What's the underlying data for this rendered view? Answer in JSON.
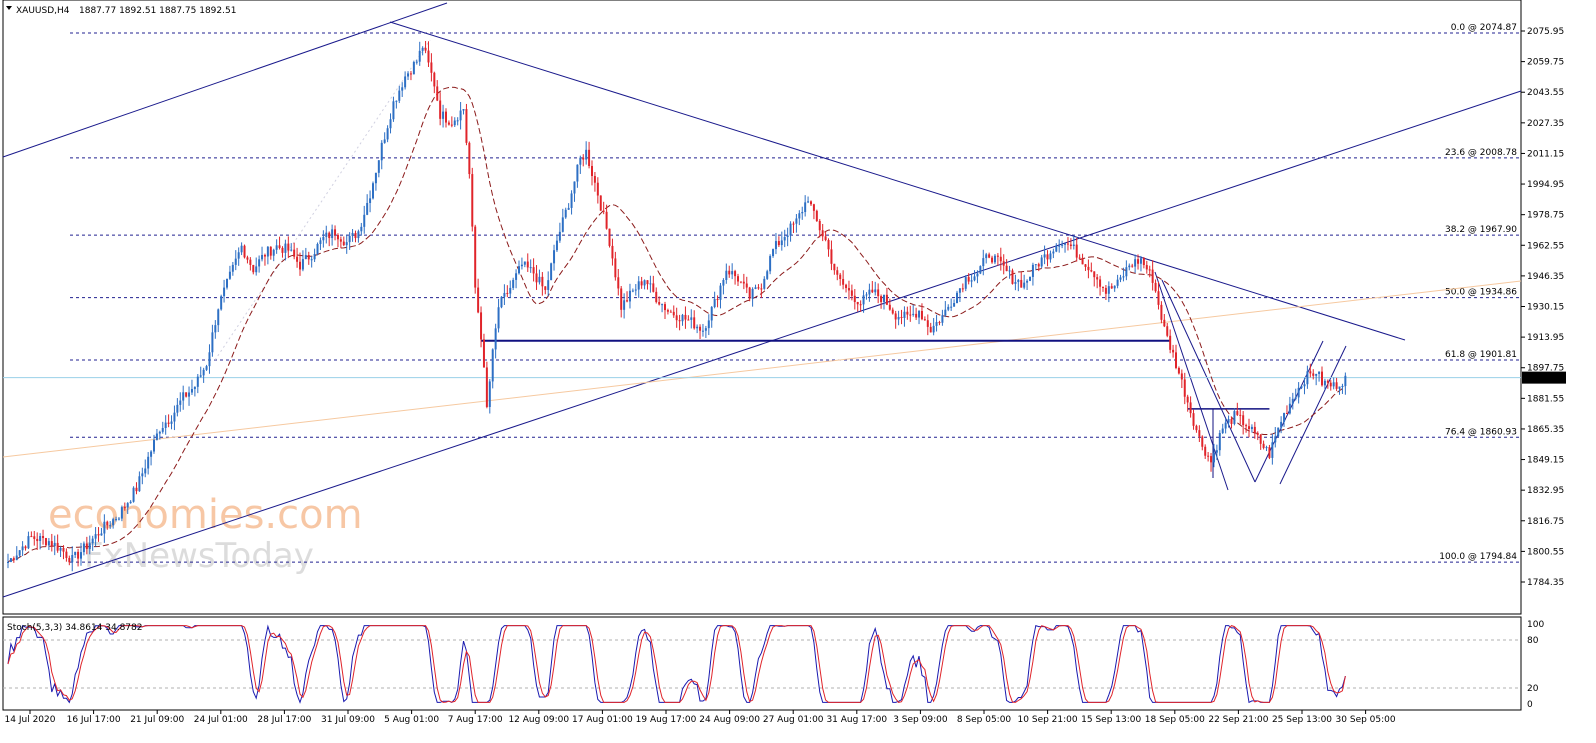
{
  "header": {
    "symbol": "XAUUSD,H4",
    "ohlc": "1887.77 1892.51 1887.75 1892.51"
  },
  "watermark": {
    "line1": "economies.com",
    "line2": "FxNewsToday"
  },
  "chart_data": {
    "type": "candlestick",
    "ylim": [
      1784.35,
      2083
    ],
    "price_ticks": [
      "2075.95",
      "2059.75",
      "2043.55",
      "2027.35",
      "2011.15",
      "1994.95",
      "1978.75",
      "1962.55",
      "1946.35",
      "1930.15",
      "1913.95",
      "1897.75",
      "1881.55",
      "1865.35",
      "1849.15",
      "1832.95",
      "1816.75",
      "1800.55",
      "1784.35"
    ],
    "current_price": {
      "value": 1892.51,
      "label": "1892.51"
    },
    "x_labels": [
      "14 Jul 2020",
      "16 Jul 17:00",
      "21 Jul 09:00",
      "24 Jul 01:00",
      "28 Jul 17:00",
      "31 Jul 09:00",
      "5 Aug 01:00",
      "7 Aug 17:00",
      "12 Aug 09:00",
      "17 Aug 01:00",
      "19 Aug 17:00",
      "24 Aug 09:00",
      "27 Aug 01:00",
      "31 Aug 17:00",
      "3 Sep 09:00",
      "8 Sep 05:00",
      "10 Sep 21:00",
      "15 Sep 13:00",
      "18 Sep 05:00",
      "22 Sep 21:00",
      "25 Sep 13:00",
      "30 Sep 05:00"
    ],
    "fib_levels": [
      {
        "label": "0.0 @ 2074.87",
        "value": 2074.87
      },
      {
        "label": "23.6 @ 2008.78",
        "value": 2008.78
      },
      {
        "label": "38.2 @ 1967.90",
        "value": 1967.9
      },
      {
        "label": "50.0 @ 1934.86",
        "value": 1934.86
      },
      {
        "label": "61.8 @ 1901.81",
        "value": 1901.81
      },
      {
        "label": "76.4 @ 1860.93",
        "value": 1860.93
      },
      {
        "label": "100.0 @ 1794.84",
        "value": 1794.84
      }
    ],
    "support_line": {
      "value": 1912,
      "from_bar": 162,
      "to_bar": 398
    },
    "box_line": {
      "value": 1876,
      "from_bar": 404,
      "to_bar": 432
    },
    "candles_anchor": [
      [
        0,
        1795
      ],
      [
        8,
        1808
      ],
      [
        14,
        1806
      ],
      [
        18,
        1802
      ],
      [
        22,
        1796
      ],
      [
        26,
        1802
      ],
      [
        32,
        1812
      ],
      [
        38,
        1820
      ],
      [
        44,
        1834
      ],
      [
        48,
        1850
      ],
      [
        52,
        1866
      ],
      [
        56,
        1872
      ],
      [
        60,
        1882
      ],
      [
        64,
        1888
      ],
      [
        68,
        1900
      ],
      [
        72,
        1930
      ],
      [
        76,
        1946
      ],
      [
        80,
        1962
      ],
      [
        84,
        1950
      ],
      [
        88,
        1958
      ],
      [
        92,
        1962
      ],
      [
        96,
        1960
      ],
      [
        100,
        1952
      ],
      [
        104,
        1958
      ],
      [
        108,
        1966
      ],
      [
        112,
        1970
      ],
      [
        116,
        1964
      ],
      [
        120,
        1970
      ],
      [
        124,
        1990
      ],
      [
        128,
        2015
      ],
      [
        132,
        2038
      ],
      [
        136,
        2052
      ],
      [
        140,
        2060
      ],
      [
        142,
        2068
      ],
      [
        146,
        2048
      ],
      [
        148,
        2032
      ],
      [
        152,
        2028
      ],
      [
        156,
        2035
      ],
      [
        158,
        2000
      ],
      [
        160,
        1940
      ],
      [
        162,
        1915
      ],
      [
        164,
        1876
      ],
      [
        166,
        1905
      ],
      [
        168,
        1930
      ],
      [
        172,
        1940
      ],
      [
        176,
        1952
      ],
      [
        180,
        1948
      ],
      [
        184,
        1938
      ],
      [
        188,
        1965
      ],
      [
        192,
        1985
      ],
      [
        196,
        2008
      ],
      [
        198,
        2012
      ],
      [
        202,
        1990
      ],
      [
        206,
        1965
      ],
      [
        210,
        1930
      ],
      [
        214,
        1938
      ],
      [
        218,
        1945
      ],
      [
        222,
        1935
      ],
      [
        226,
        1928
      ],
      [
        230,
        1925
      ],
      [
        234,
        1922
      ],
      [
        238,
        1918
      ],
      [
        242,
        1932
      ],
      [
        246,
        1950
      ],
      [
        250,
        1945
      ],
      [
        254,
        1935
      ],
      [
        258,
        1942
      ],
      [
        262,
        1960
      ],
      [
        266,
        1968
      ],
      [
        270,
        1975
      ],
      [
        274,
        1988
      ],
      [
        276,
        1978
      ],
      [
        280,
        1965
      ],
      [
        284,
        1945
      ],
      [
        288,
        1938
      ],
      [
        292,
        1932
      ],
      [
        296,
        1938
      ],
      [
        300,
        1934
      ],
      [
        304,
        1926
      ],
      [
        308,
        1924
      ],
      [
        312,
        1928
      ],
      [
        316,
        1918
      ],
      [
        320,
        1925
      ],
      [
        324,
        1935
      ],
      [
        328,
        1945
      ],
      [
        332,
        1948
      ],
      [
        336,
        1958
      ],
      [
        340,
        1952
      ],
      [
        344,
        1945
      ],
      [
        348,
        1942
      ],
      [
        352,
        1952
      ],
      [
        356,
        1958
      ],
      [
        360,
        1965
      ],
      [
        364,
        1962
      ],
      [
        368,
        1955
      ],
      [
        372,
        1948
      ],
      [
        376,
        1938
      ],
      [
        380,
        1942
      ],
      [
        384,
        1952
      ],
      [
        388,
        1955
      ],
      [
        392,
        1945
      ],
      [
        396,
        1918
      ],
      [
        400,
        1900
      ],
      [
        404,
        1880
      ],
      [
        408,
        1860
      ],
      [
        412,
        1848
      ],
      [
        416,
        1866
      ],
      [
        420,
        1872
      ],
      [
        424,
        1868
      ],
      [
        428,
        1860
      ],
      [
        432,
        1852
      ],
      [
        436,
        1870
      ],
      [
        440,
        1882
      ],
      [
        444,
        1892
      ],
      [
        448,
        1896
      ],
      [
        450,
        1890
      ],
      [
        454,
        1888
      ],
      [
        458,
        1892
      ]
    ],
    "stoch": {
      "label": "Stoch(5,3,3) 34.8614 34.8782",
      "main": 34.8614,
      "signal": 34.8782,
      "levels": [
        {
          "value": 100,
          "label": "100"
        },
        {
          "value": 80,
          "label": "80"
        },
        {
          "value": 20,
          "label": "20"
        },
        {
          "value": 0,
          "label": "0"
        }
      ]
    }
  }
}
